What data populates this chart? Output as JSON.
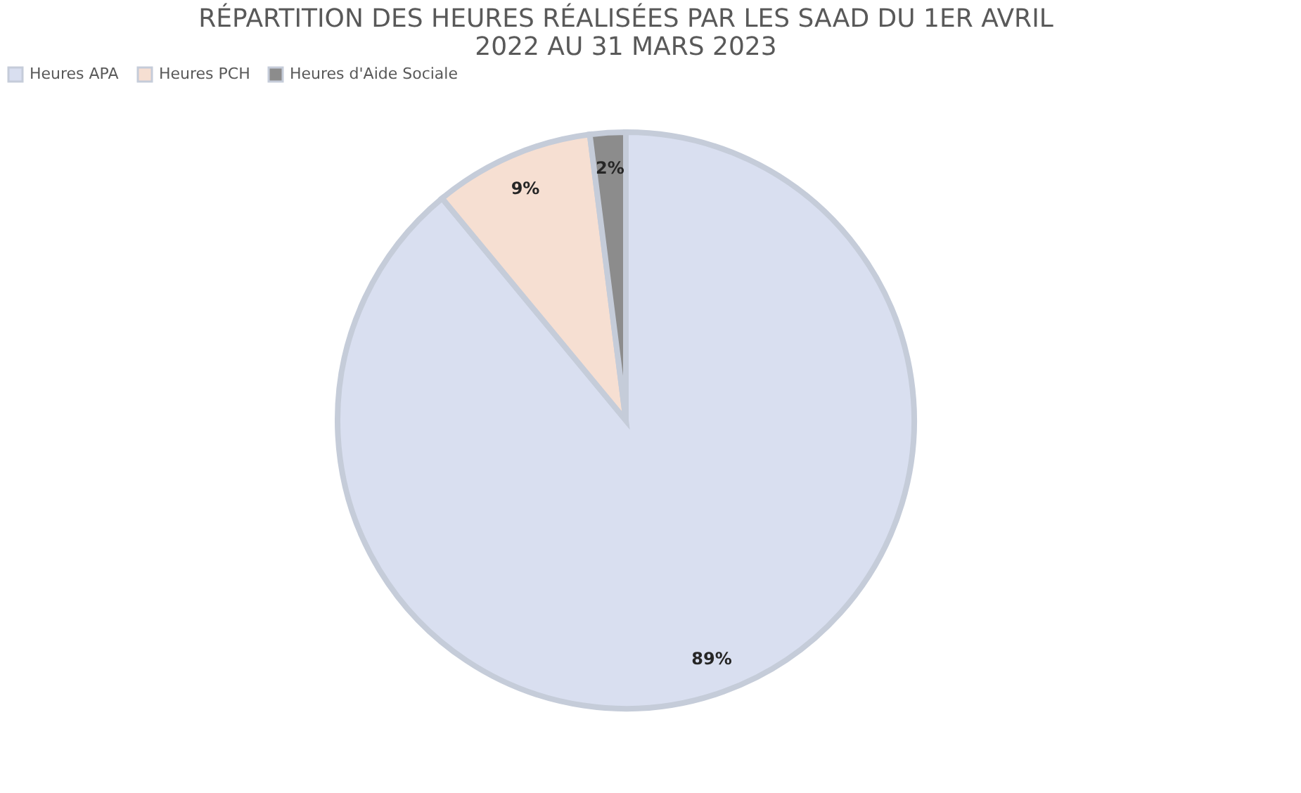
{
  "chart_data": {
    "type": "pie",
    "title": [
      "RÉPARTITION DES HEURES RÉALISÉES PAR LES SAAD DU 1ER AVRIL",
      "2022 AU 31 MARS 2023"
    ],
    "categories": [
      "Heures APA",
      "Heures PCH",
      "Heures d'Aide Sociale"
    ],
    "values": [
      89,
      9,
      2
    ],
    "colors": [
      "#d9dff0",
      "#f6dfd2",
      "#8c8c8c"
    ],
    "value_labels": [
      "89%",
      "9%",
      "2%"
    ],
    "legend": "top"
  }
}
